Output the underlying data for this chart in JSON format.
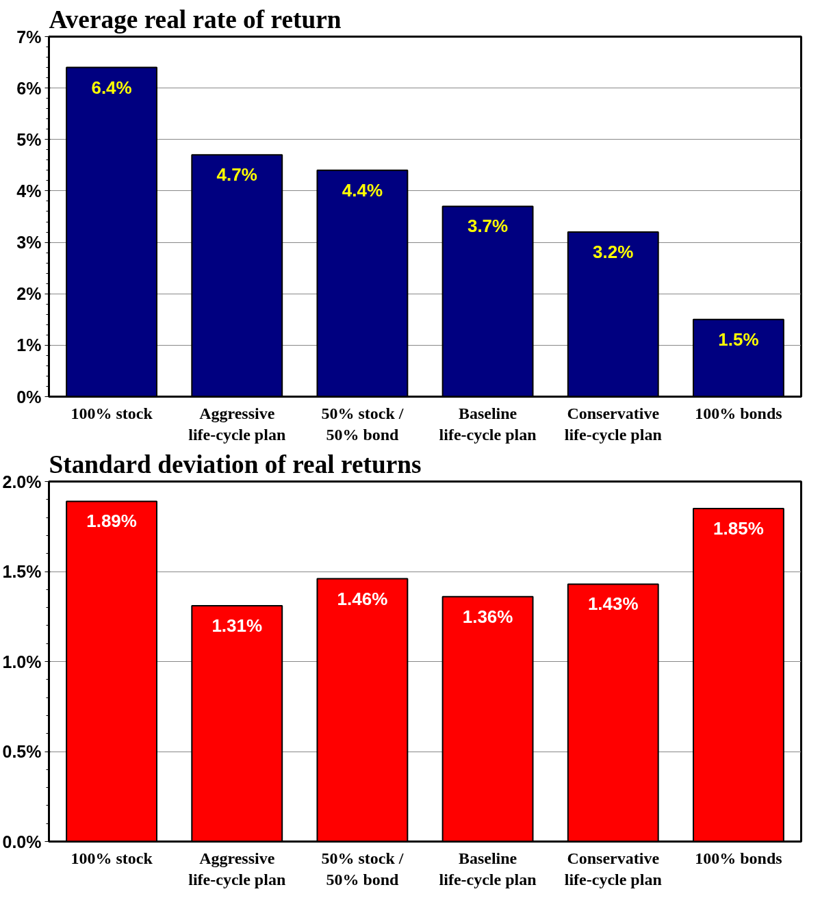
{
  "chart_data": [
    {
      "type": "bar",
      "title": "Average real rate of return",
      "categories": [
        "100% stock",
        "Aggressive\nlife-cycle plan",
        "50% stock /\n50% bond",
        "Baseline\nlife-cycle plan",
        "Conservative\nlife-cycle plan",
        "100% bonds"
      ],
      "values": [
        6.4,
        4.7,
        4.4,
        3.7,
        3.2,
        1.5
      ],
      "value_labels": [
        "6.4%",
        "4.7%",
        "4.4%",
        "3.7%",
        "3.2%",
        "1.5%"
      ],
      "color": "#000080",
      "ylim": [
        0,
        7
      ],
      "yticks": [
        {
          "value": 0,
          "label": "0%"
        },
        {
          "value": 1,
          "label": "1%"
        },
        {
          "value": 2,
          "label": "2%"
        },
        {
          "value": 3,
          "label": "3%"
        },
        {
          "value": 4,
          "label": "4%"
        },
        {
          "value": 5,
          "label": "5%"
        },
        {
          "value": 6,
          "label": "6%"
        },
        {
          "value": 7,
          "label": "7%"
        }
      ],
      "grid": "y"
    },
    {
      "type": "bar",
      "title": "Standard deviation of real returns",
      "categories": [
        "100% stock",
        "Aggressive\nlife-cycle plan",
        "50% stock /\n50% bond",
        "Baseline\nlife-cycle plan",
        "Conservative\nlife-cycle plan",
        "100% bonds"
      ],
      "values": [
        1.89,
        1.31,
        1.46,
        1.36,
        1.43,
        1.85
      ],
      "value_labels": [
        "1.89%",
        "1.31%",
        "1.46%",
        "1.36%",
        "1.43%",
        "1.85%"
      ],
      "color": "#ff0000",
      "ylim": [
        0,
        2
      ],
      "yticks": [
        {
          "value": 0,
          "label": "0.0%"
        },
        {
          "value": 0.5,
          "label": "0.5%"
        },
        {
          "value": 1,
          "label": "1.0%"
        },
        {
          "value": 1.5,
          "label": "1.5%"
        },
        {
          "value": 2,
          "label": "2.0%"
        }
      ],
      "grid": "y"
    }
  ]
}
